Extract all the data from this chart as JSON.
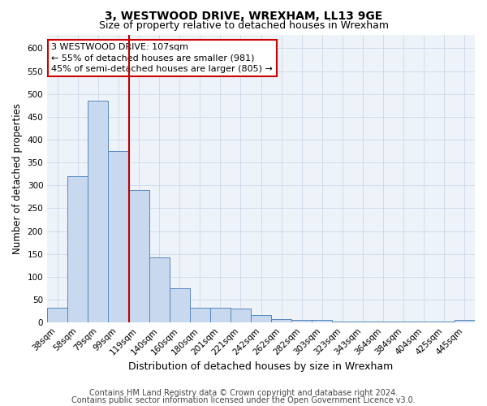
{
  "title": "3, WESTWOOD DRIVE, WREXHAM, LL13 9GE",
  "subtitle": "Size of property relative to detached houses in Wrexham",
  "xlabel": "Distribution of detached houses by size in Wrexham",
  "ylabel": "Number of detached properties",
  "categories": [
    "38sqm",
    "58sqm",
    "79sqm",
    "99sqm",
    "119sqm",
    "140sqm",
    "160sqm",
    "180sqm",
    "201sqm",
    "221sqm",
    "242sqm",
    "262sqm",
    "282sqm",
    "303sqm",
    "323sqm",
    "343sqm",
    "364sqm",
    "384sqm",
    "404sqm",
    "425sqm",
    "445sqm"
  ],
  "values": [
    32,
    320,
    485,
    375,
    290,
    143,
    75,
    33,
    33,
    30,
    17,
    8,
    5,
    5,
    3,
    3,
    3,
    3,
    3,
    3,
    5
  ],
  "bar_color": "#c8d8ee",
  "bar_edge_color": "#5588bb",
  "bar_edge_width": 0.7,
  "red_line_x": 3.5,
  "red_line_color": "#bb0000",
  "annotation_line1": "3 WESTWOOD DRIVE: 107sqm",
  "annotation_line2": "← 55% of detached houses are smaller (981)",
  "annotation_line3": "45% of semi-detached houses are larger (805) →",
  "annotation_box_color": "#ffffff",
  "annotation_box_edge_color": "#cc0000",
  "ylim": [
    0,
    630
  ],
  "yticks": [
    0,
    50,
    100,
    150,
    200,
    250,
    300,
    350,
    400,
    450,
    500,
    550,
    600
  ],
  "grid_color": "#ccd8e8",
  "bg_color": "#eef3fa",
  "footer_line1": "Contains HM Land Registry data © Crown copyright and database right 2024.",
  "footer_line2": "Contains public sector information licensed under the Open Government Licence v3.0.",
  "title_fontsize": 10,
  "subtitle_fontsize": 9,
  "xlabel_fontsize": 9,
  "ylabel_fontsize": 8.5,
  "tick_fontsize": 7.5,
  "annotation_fontsize": 8,
  "footer_fontsize": 7
}
